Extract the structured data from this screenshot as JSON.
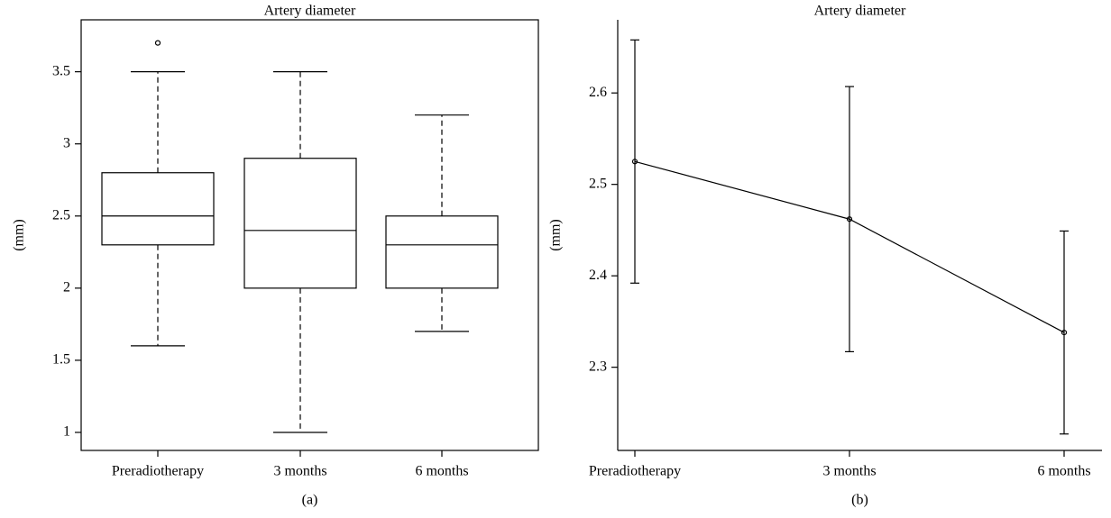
{
  "chart_data": [
    {
      "type": "box",
      "title": "Artery diameter",
      "ylabel": "(mm)",
      "caption": "(a)",
      "categories": [
        "Preradiotherapy",
        "3 months",
        "6 months"
      ],
      "boxes": [
        {
          "min": 1.6,
          "q1": 2.3,
          "median": 2.5,
          "q3": 2.8,
          "max": 3.5,
          "outliers": [
            3.7
          ]
        },
        {
          "min": 1.0,
          "q1": 2.0,
          "median": 2.4,
          "q3": 2.9,
          "max": 3.5,
          "outliers": []
        },
        {
          "min": 1.7,
          "q1": 2.0,
          "median": 2.3,
          "q3": 2.5,
          "max": 3.2,
          "outliers": []
        }
      ],
      "ylim": [
        0.875,
        3.86
      ],
      "yticks": [
        1,
        1.5,
        2,
        2.5,
        3,
        3.5
      ],
      "color": "#000000"
    },
    {
      "type": "line",
      "title": "Artery diameter",
      "ylabel": "(mm)",
      "caption": "(b)",
      "categories": [
        "Preradiotherapy",
        "3 months",
        "6 months"
      ],
      "values": [
        2.525,
        2.462,
        2.338
      ],
      "errors": [
        0.133,
        0.145,
        0.111
      ],
      "ylim": [
        2.209,
        2.68
      ],
      "yticks": [
        2.3,
        2.4,
        2.5,
        2.6
      ],
      "color": "#000000"
    }
  ]
}
